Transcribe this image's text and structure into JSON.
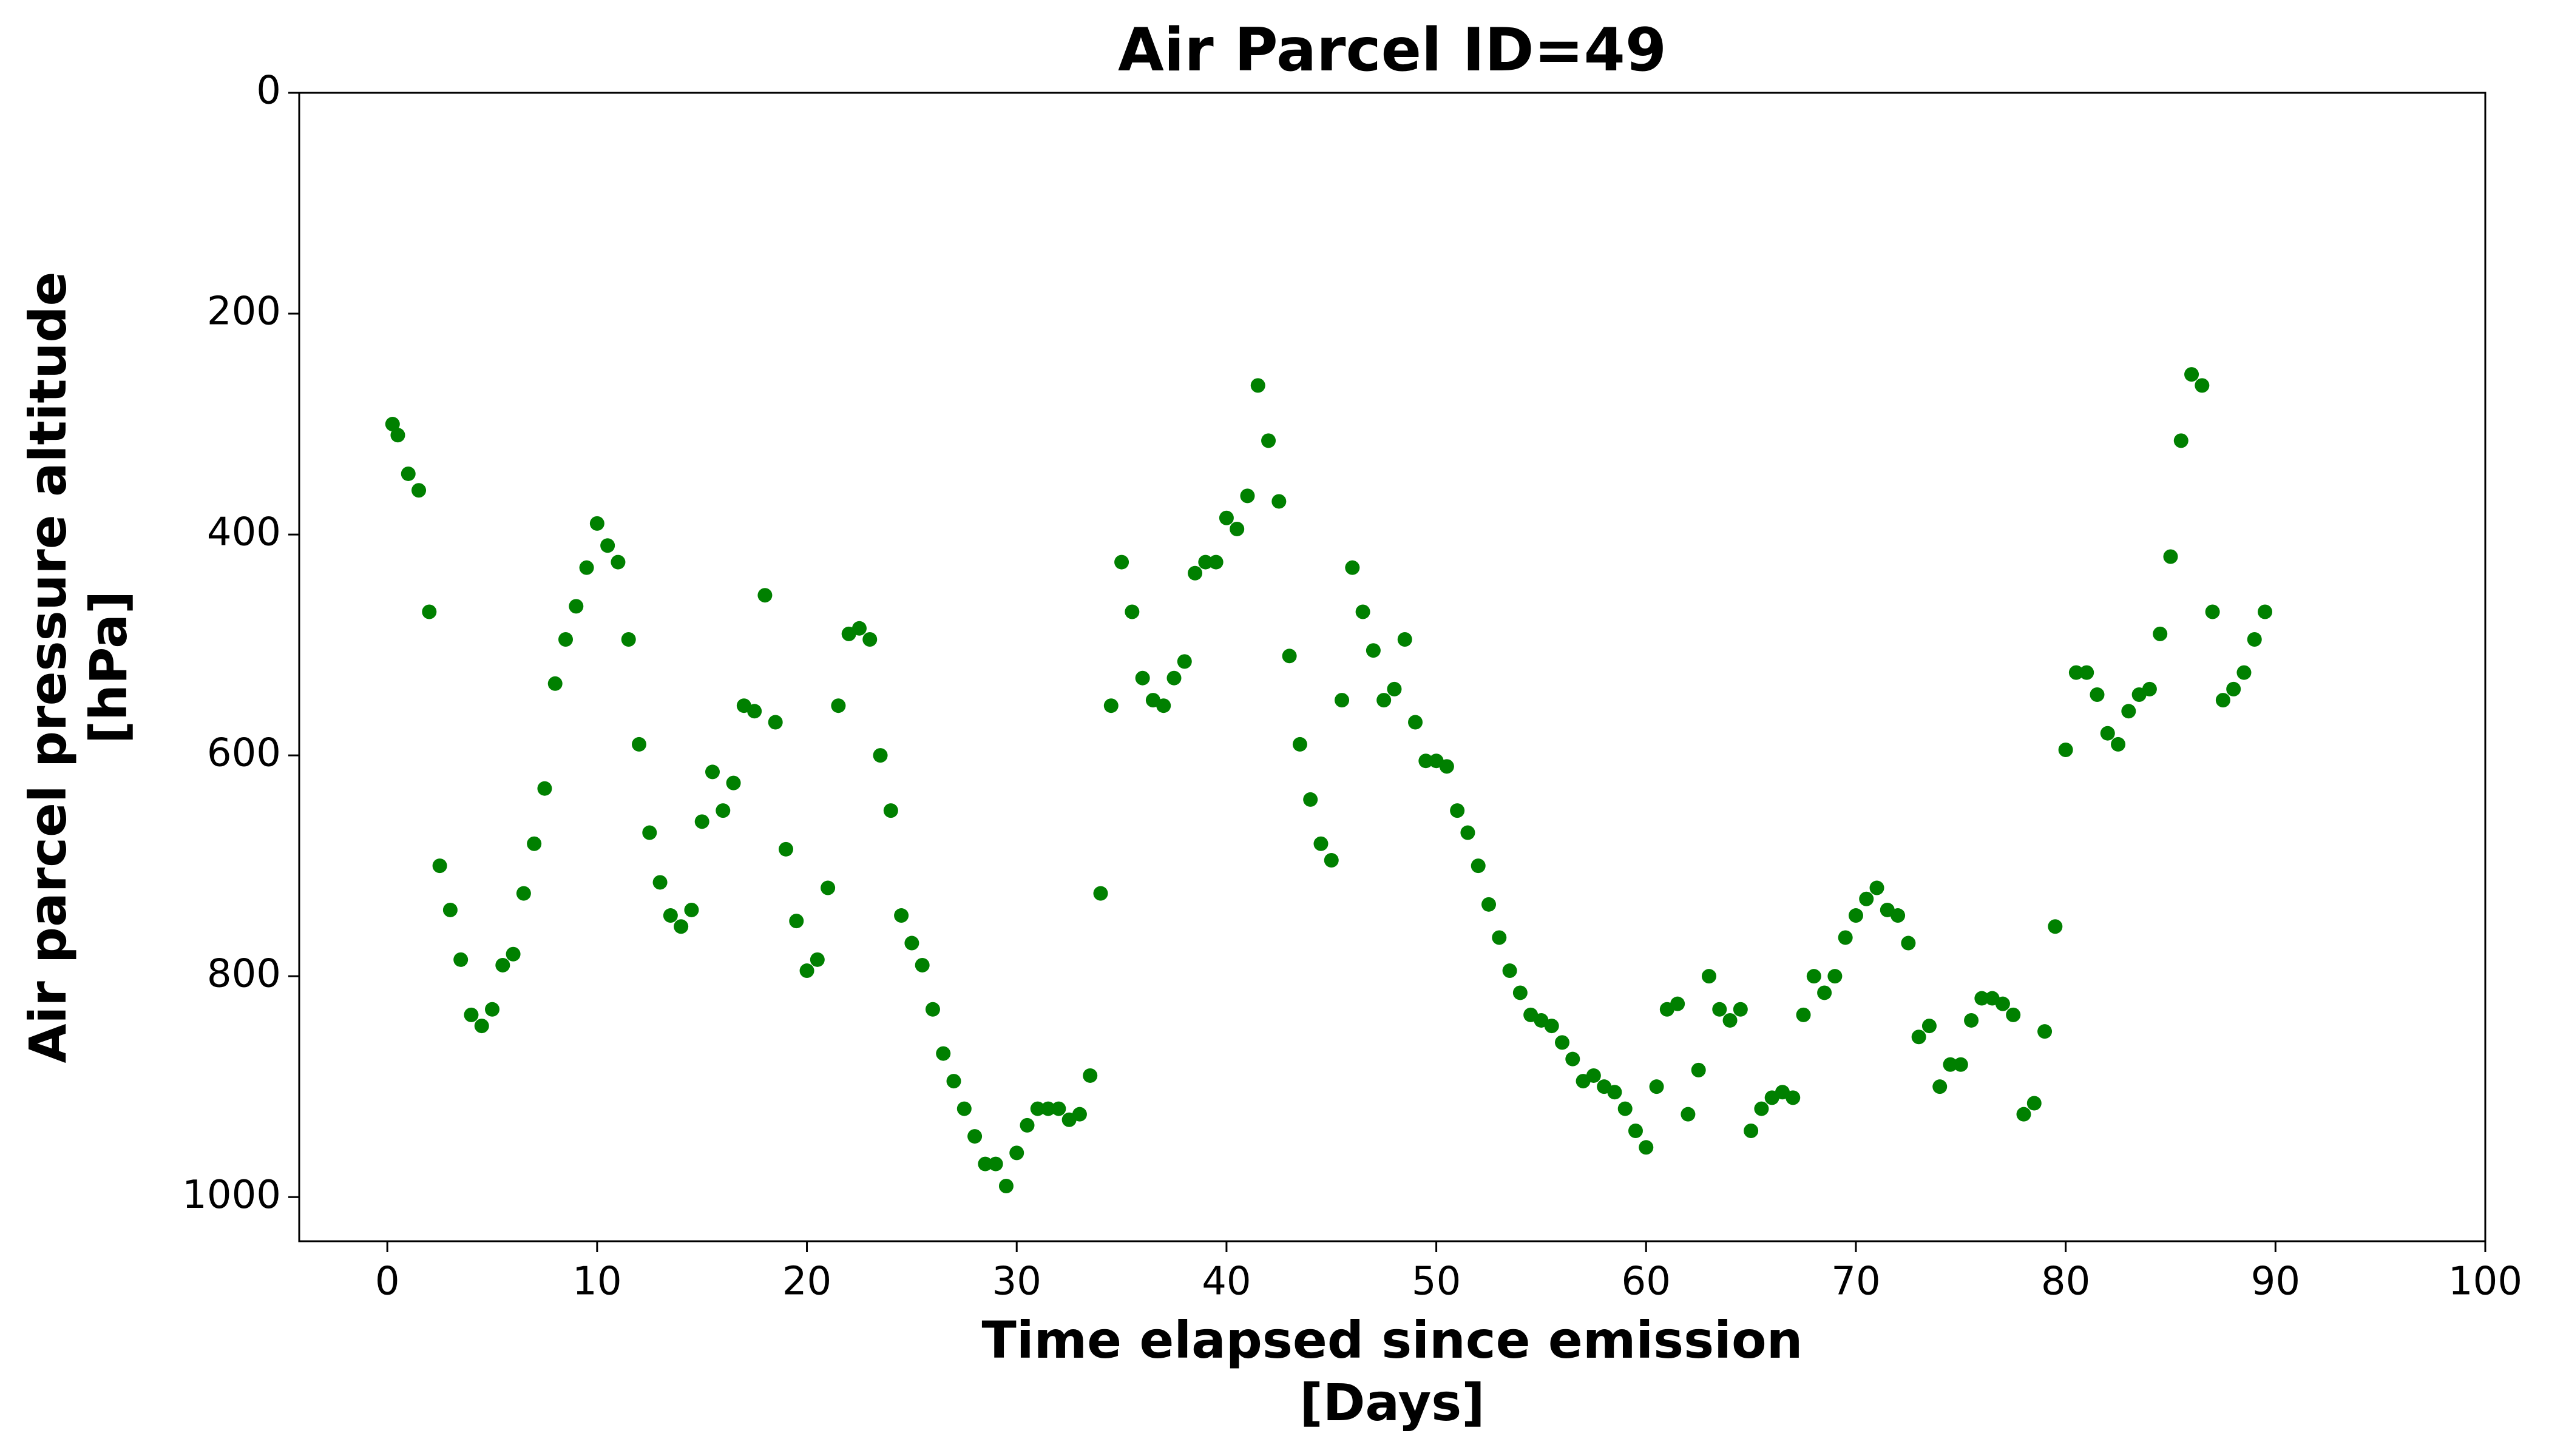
{
  "chart_data": {
    "type": "scatter",
    "title": "Air Parcel ID=49",
    "xlabel": [
      "Time elapsed since emission",
      "[Days]"
    ],
    "ylabel": [
      "Air parcel pressure altitude",
      "[hPa]"
    ],
    "color": "#008000",
    "xlim": [
      -4.2,
      100
    ],
    "xticks": [
      0,
      10,
      20,
      30,
      40,
      50,
      60,
      70,
      80,
      90,
      100
    ],
    "ylim": [
      0,
      1040
    ],
    "yticks": [
      0,
      200,
      400,
      600,
      800,
      1000
    ],
    "invert_y": true,
    "x": [
      0.25,
      0.5,
      1,
      1.5,
      2,
      2.5,
      3,
      3.5,
      4,
      4.5,
      5,
      5.5,
      6,
      6.5,
      7,
      7.5,
      8,
      8.5,
      9,
      9.5,
      10,
      10.5,
      11,
      11.5,
      12,
      12.5,
      13,
      13.5,
      14,
      14.5,
      15,
      15.5,
      16,
      16.5,
      17,
      17.5,
      18,
      18.5,
      19,
      19.5,
      20,
      20.5,
      21,
      21.5,
      22,
      22.5,
      23,
      23.5,
      24,
      24.5,
      25,
      25.5,
      26,
      26.5,
      27,
      27.5,
      28,
      28.5,
      29,
      29.5,
      30,
      30.5,
      31,
      31.5,
      32,
      32.5,
      33,
      33.5,
      34,
      34.5,
      35,
      35.5,
      36,
      36.5,
      37,
      37.5,
      38,
      38.5,
      39,
      39.5,
      40,
      40.5,
      41,
      41.5,
      42,
      42.5,
      43,
      43.5,
      44,
      44.5,
      45,
      45.5,
      46,
      46.5,
      47,
      47.5,
      48,
      48.5,
      49,
      49.5,
      50,
      50.5,
      51,
      51.5,
      52,
      52.5,
      53,
      53.5,
      54,
      54.5,
      55,
      55.5,
      56,
      56.5,
      57,
      57.5,
      58,
      58.5,
      59,
      59.5,
      60,
      60.5,
      61,
      61.5,
      62,
      62.5,
      63,
      63.5,
      64,
      64.5,
      65,
      65.5,
      66,
      66.5,
      67,
      67.5,
      68,
      68.5,
      69,
      69.5,
      70,
      70.5,
      71,
      71.5,
      72,
      72.5,
      73,
      73.5,
      74,
      74.5,
      75,
      75.5,
      76,
      76.5,
      77,
      77.5,
      78,
      78.5,
      79,
      79.5,
      80,
      80.5,
      81,
      81.5,
      82,
      82.5,
      83,
      83.5,
      84,
      84.5,
      85,
      85.5,
      86,
      86.5,
      87,
      87.5,
      88,
      88.5,
      89,
      89.5
    ],
    "values": [
      300,
      310,
      345,
      360,
      470,
      700,
      740,
      785,
      835,
      845,
      830,
      790,
      780,
      725,
      680,
      630,
      535,
      495,
      465,
      430,
      390,
      410,
      425,
      495,
      590,
      670,
      715,
      745,
      755,
      740,
      660,
      615,
      650,
      625,
      555,
      560,
      455,
      570,
      685,
      750,
      795,
      785,
      720,
      555,
      490,
      485,
      495,
      600,
      650,
      745,
      770,
      790,
      830,
      870,
      895,
      920,
      945,
      970,
      970,
      990,
      960,
      935,
      920,
      920,
      920,
      930,
      925,
      890,
      725,
      555,
      425,
      470,
      530,
      550,
      555,
      530,
      515,
      435,
      425,
      425,
      385,
      395,
      365,
      265,
      315,
      370,
      510,
      590,
      640,
      680,
      695,
      550,
      430,
      470,
      505,
      550,
      540,
      495,
      570,
      605,
      605,
      610,
      650,
      670,
      700,
      735,
      765,
      795,
      815,
      835,
      840,
      845,
      860,
      875,
      895,
      890,
      900,
      905,
      920,
      940,
      955,
      900,
      830,
      825,
      925,
      885,
      800,
      830,
      840,
      830,
      940,
      920,
      910,
      905,
      910,
      835,
      800,
      815,
      800,
      765,
      745,
      730,
      720,
      740,
      745,
      770,
      855,
      845,
      900,
      880,
      880,
      840,
      820,
      820,
      825,
      835,
      925,
      915,
      850,
      755,
      595,
      525,
      525,
      545,
      580,
      590,
      560,
      545,
      540,
      490,
      420,
      315,
      255,
      265,
      470,
      550,
      540,
      525,
      495,
      470
    ]
  }
}
